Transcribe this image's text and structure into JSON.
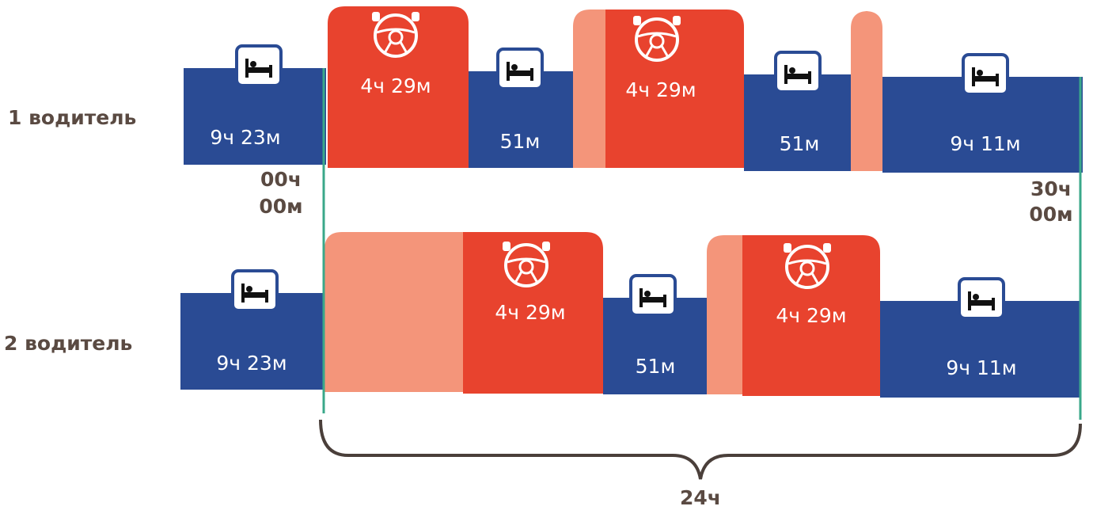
{
  "rows": [
    {
      "label": "1 водитель",
      "segments": [
        "9ч 23м",
        "4ч 29м",
        "51м",
        "4ч 29м",
        "51м",
        "9ч 11м"
      ]
    },
    {
      "label": "2 водитель",
      "segments": [
        "9ч 23м",
        "4ч 29м",
        "51м",
        "4ч 29м",
        "9ч 11м"
      ]
    }
  ],
  "start_label": [
    "00ч",
    "00м"
  ],
  "end_label": [
    "30ч",
    "00м"
  ],
  "span_label": "24ч"
}
